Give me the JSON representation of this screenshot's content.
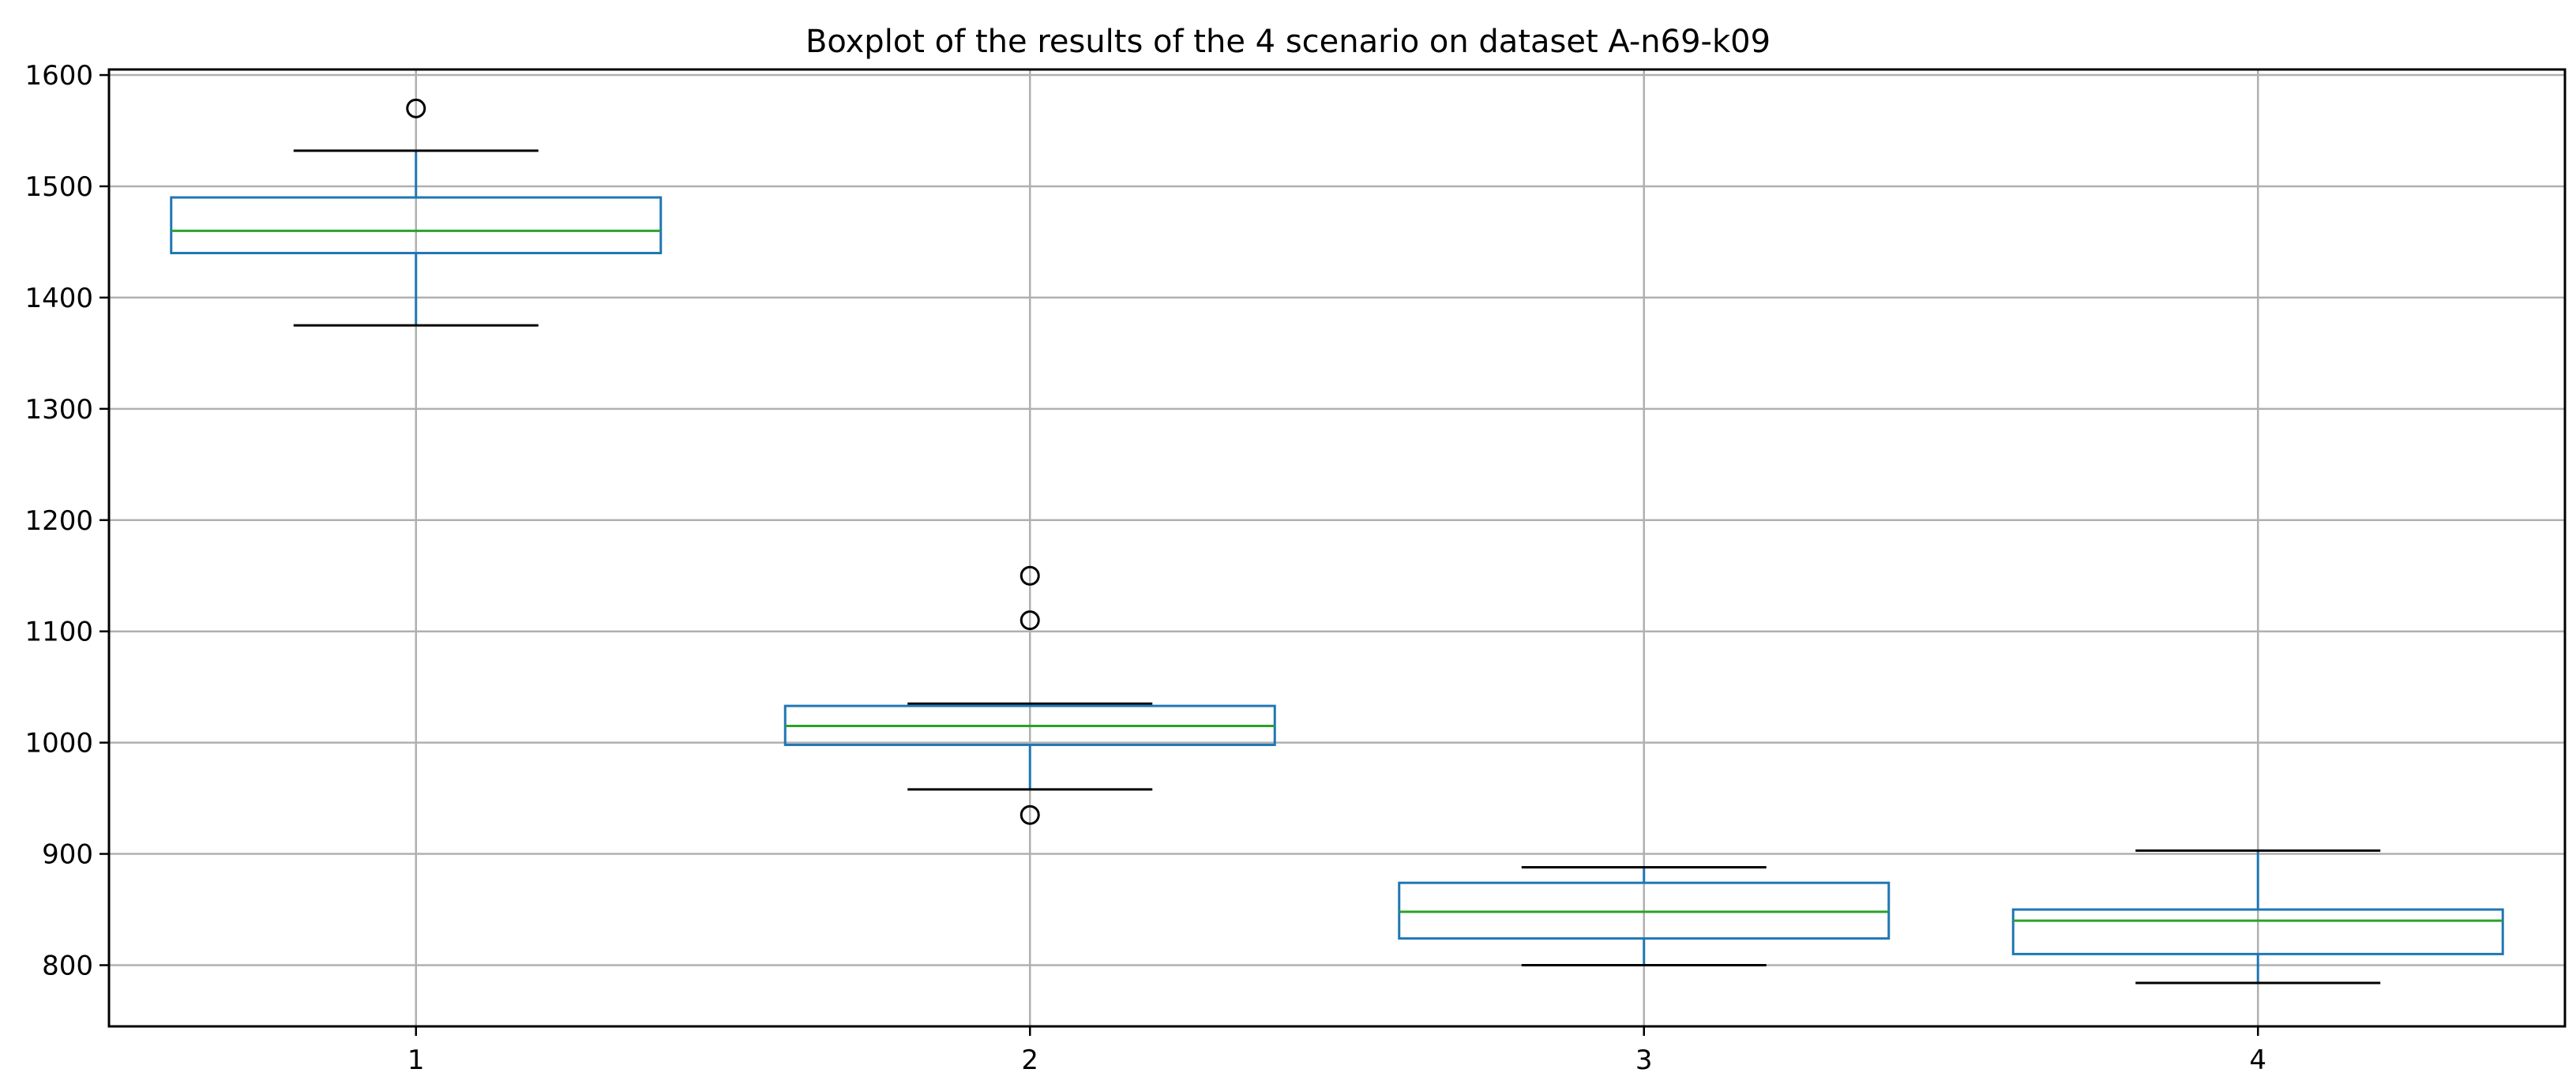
{
  "chart_data": {
    "type": "boxplot",
    "title": "Boxplot of the results of the 4 scenario on dataset A-n69-k09",
    "xlabel": "",
    "ylabel": "",
    "categories": [
      "1",
      "2",
      "3",
      "4"
    ],
    "ylim": [
      745,
      1605
    ],
    "yticks": [
      800,
      900,
      1000,
      1100,
      1200,
      1300,
      1400,
      1500,
      1600
    ],
    "grid": true,
    "colors": {
      "box": "#1f77b4",
      "median": "#2ca02c",
      "whisker_cap": "#000000",
      "grid": "#b0b0b0",
      "outlier": "#000000"
    },
    "boxes": [
      {
        "category": "1",
        "whisker_low": 1375,
        "q1": 1440,
        "median": 1460,
        "q3": 1490,
        "whisker_high": 1532,
        "outliers": [
          1570
        ]
      },
      {
        "category": "2",
        "whisker_low": 958,
        "q1": 998,
        "median": 1015,
        "q3": 1033,
        "whisker_high": 1035,
        "outliers": [
          1150,
          1110,
          935
        ]
      },
      {
        "category": "3",
        "whisker_low": 800,
        "q1": 824,
        "median": 848,
        "q3": 874,
        "whisker_high": 888,
        "outliers": []
      },
      {
        "category": "4",
        "whisker_low": 784,
        "q1": 810,
        "median": 840,
        "q3": 850,
        "whisker_high": 903,
        "outliers": []
      }
    ]
  }
}
